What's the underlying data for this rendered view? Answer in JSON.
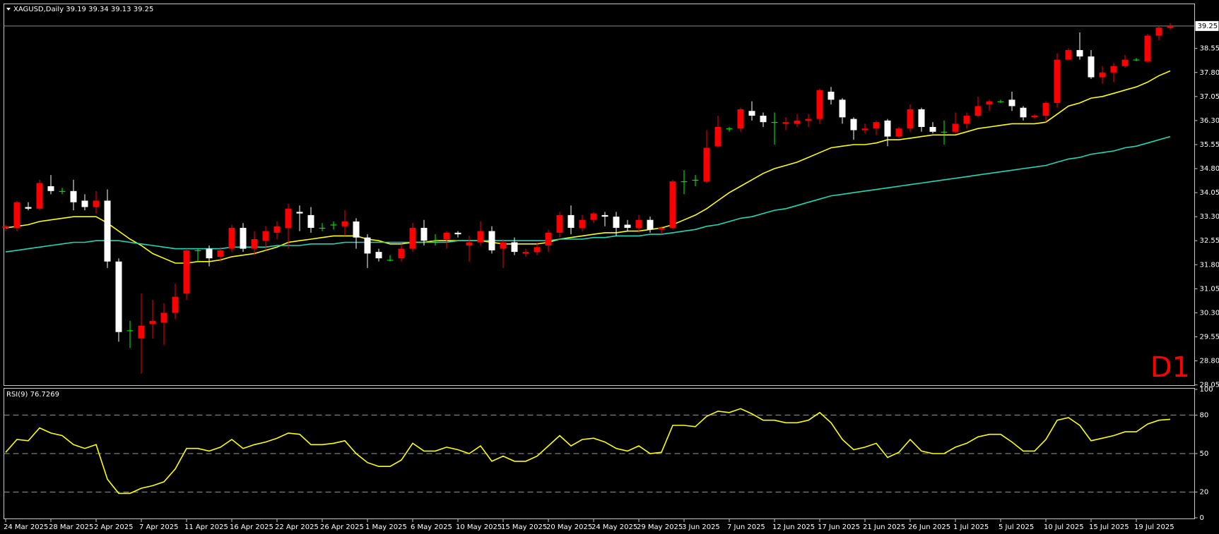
{
  "chart_data": [
    {
      "type": "candlestick",
      "title": "XAGUSD,Daily  39.19 39.34 39.13 39.25",
      "timeframe_label": "D1",
      "up_color": "#ff0000",
      "down_color": "#ffffff",
      "doji_color": "#00ff00",
      "ylim": [
        28.02,
        39.93
      ],
      "yticks": [
        28.05,
        {
          "value": 28.8,
          "label": "28.80"
        },
        29.55,
        {
          "value": 30.3,
          "label": "30.30"
        },
        31.05,
        {
          "value": 31.8,
          "label": "31.80"
        },
        32.55,
        {
          "value": 33.3,
          "label": "33.30"
        },
        34.05,
        {
          "value": 34.8,
          "label": "34.80"
        },
        35.55,
        {
          "value": 36.3,
          "label": "36.30"
        },
        37.05,
        {
          "value": 37.8,
          "label": "37.80"
        },
        38.55
      ],
      "current_price": 39.25,
      "open": [
        32.95,
        32.95,
        33.6,
        33.55,
        34.25,
        34.1,
        34.1,
        33.8,
        33.6,
        33.8,
        31.9,
        29.75,
        29.5,
        29.95,
        30.0,
        30.3,
        30.9,
        32.25,
        32.3,
        32.05,
        32.3,
        32.95,
        32.3,
        32.55,
        32.8,
        32.95,
        33.45,
        33.35,
        32.95,
        33.05,
        33.0,
        33.15,
        32.65,
        32.2,
        31.95,
        32.0,
        32.3,
        32.95,
        32.55,
        32.6,
        32.8,
        32.4,
        32.5,
        32.85,
        32.3,
        32.5,
        32.15,
        32.2,
        32.4,
        32.8,
        33.35,
        32.95,
        33.2,
        33.35,
        33.3,
        33.05,
        32.95,
        33.2,
        32.9,
        32.95,
        34.4,
        34.45,
        34.4,
        35.5,
        36.05,
        36.05,
        36.6,
        36.45,
        36.25,
        36.2,
        36.2,
        36.3,
        36.35,
        37.2,
        36.95,
        36.35,
        36.0,
        36.05,
        36.3,
        35.8,
        36.05,
        36.65,
        36.1,
        35.95,
        35.95,
        36.2,
        36.45,
        36.8,
        36.9,
        36.95,
        36.7,
        36.4,
        36.45,
        36.85,
        38.2,
        38.5,
        38.3,
        37.65,
        37.8,
        38.0,
        38.2,
        38.15,
        38.95,
        39.19
      ],
      "high": [
        33.05,
        33.8,
        33.75,
        34.45,
        34.6,
        34.2,
        34.45,
        34.0,
        34.1,
        34.15,
        32.0,
        30.05,
        30.9,
        30.7,
        30.6,
        31.2,
        32.3,
        32.3,
        32.4,
        32.35,
        33.05,
        33.1,
        32.85,
        33.0,
        33.15,
        33.7,
        33.65,
        33.6,
        33.1,
        33.15,
        33.5,
        33.25,
        32.75,
        32.3,
        32.1,
        32.45,
        33.1,
        33.2,
        32.75,
        32.85,
        32.85,
        32.7,
        33.15,
        33.0,
        32.6,
        32.65,
        32.3,
        32.5,
        32.9,
        33.45,
        33.65,
        33.35,
        33.45,
        33.45,
        33.45,
        33.2,
        33.35,
        33.3,
        33.0,
        34.45,
        34.75,
        34.6,
        36.0,
        36.45,
        36.1,
        36.7,
        36.9,
        36.55,
        36.55,
        36.4,
        36.5,
        36.5,
        37.3,
        37.35,
        37.0,
        36.4,
        36.2,
        36.3,
        36.35,
        36.1,
        36.8,
        36.7,
        36.25,
        36.3,
        36.55,
        36.55,
        37.05,
        36.95,
        36.95,
        37.2,
        36.75,
        36.5,
        36.9,
        38.4,
        38.55,
        39.05,
        38.5,
        38.0,
        38.1,
        38.35,
        38.25,
        39.0,
        39.25,
        39.34
      ],
      "low": [
        32.85,
        32.85,
        33.5,
        33.5,
        34.0,
        34.0,
        33.5,
        33.5,
        33.4,
        31.7,
        29.4,
        29.2,
        28.4,
        29.5,
        29.3,
        30.1,
        30.7,
        31.9,
        31.75,
        31.9,
        32.2,
        32.2,
        32.1,
        32.25,
        32.6,
        32.3,
        32.85,
        32.8,
        32.85,
        32.9,
        32.7,
        32.3,
        31.7,
        31.9,
        31.9,
        31.9,
        32.2,
        32.4,
        32.4,
        32.3,
        32.65,
        31.9,
        32.4,
        32.15,
        31.7,
        32.1,
        32.05,
        32.1,
        32.2,
        32.65,
        32.75,
        32.85,
        33.1,
        33.0,
        32.7,
        32.85,
        32.8,
        32.8,
        32.75,
        32.9,
        34.0,
        34.25,
        34.35,
        35.45,
        35.95,
        35.95,
        36.3,
        36.1,
        35.55,
        36.0,
        36.1,
        36.1,
        36.2,
        36.8,
        36.2,
        35.7,
        35.9,
        35.85,
        35.5,
        35.75,
        35.95,
        35.95,
        35.9,
        35.55,
        35.9,
        36.05,
        36.4,
        36.6,
        36.85,
        36.6,
        36.3,
        36.35,
        36.25,
        36.7,
        38.2,
        38.2,
        37.6,
        37.45,
        37.5,
        37.95,
        38.15,
        38.1,
        38.8,
        39.13
      ],
      "close": [
        33.0,
        33.75,
        33.55,
        34.35,
        34.1,
        34.1,
        33.75,
        33.6,
        33.8,
        31.9,
        29.7,
        29.75,
        29.9,
        30.05,
        30.3,
        30.8,
        32.25,
        32.25,
        32.0,
        32.25,
        32.95,
        32.3,
        32.6,
        32.85,
        33.0,
        33.55,
        33.4,
        32.95,
        32.95,
        33.05,
        33.15,
        32.65,
        32.15,
        32.0,
        31.95,
        32.3,
        32.95,
        32.55,
        32.55,
        32.8,
        32.75,
        32.5,
        32.85,
        32.25,
        32.5,
        32.2,
        32.2,
        32.35,
        32.8,
        33.35,
        32.95,
        33.2,
        33.4,
        33.3,
        32.95,
        32.95,
        33.2,
        32.9,
        32.95,
        34.4,
        34.4,
        34.45,
        35.45,
        36.1,
        36.05,
        36.65,
        36.45,
        36.25,
        36.25,
        36.25,
        36.3,
        36.35,
        37.25,
        36.95,
        36.4,
        36.0,
        36.05,
        36.25,
        35.8,
        36.05,
        36.65,
        36.1,
        35.95,
        35.95,
        36.2,
        36.45,
        36.75,
        36.9,
        36.9,
        36.75,
        36.4,
        36.45,
        36.85,
        38.2,
        38.5,
        38.3,
        37.65,
        37.8,
        38.0,
        38.2,
        38.2,
        38.95,
        39.2,
        39.25
      ],
      "series": [
        {
          "color": "#ffff00",
          "values": [
            32.95,
            33.0,
            33.05,
            33.15,
            33.2,
            33.25,
            33.3,
            33.3,
            33.3,
            33.1,
            32.85,
            32.6,
            32.4,
            32.15,
            32.0,
            31.85,
            31.85,
            31.9,
            31.9,
            31.95,
            32.05,
            32.1,
            32.15,
            32.25,
            32.35,
            32.5,
            32.55,
            32.6,
            32.65,
            32.7,
            32.7,
            32.7,
            32.6,
            32.55,
            32.45,
            32.45,
            32.5,
            32.5,
            32.55,
            32.55,
            32.55,
            32.55,
            32.55,
            32.5,
            32.45,
            32.45,
            32.45,
            32.45,
            32.5,
            32.6,
            32.65,
            32.7,
            32.75,
            32.8,
            32.8,
            32.85,
            32.85,
            32.9,
            32.95,
            33.05,
            33.2,
            33.35,
            33.55,
            33.8,
            34.05,
            34.25,
            34.45,
            34.65,
            34.8,
            34.9,
            35.0,
            35.15,
            35.3,
            35.45,
            35.5,
            35.55,
            35.55,
            35.6,
            35.7,
            35.7,
            35.75,
            35.8,
            35.85,
            35.85,
            35.85,
            35.95,
            36.05,
            36.1,
            36.15,
            36.2,
            36.2,
            36.2,
            36.25,
            36.5,
            36.75,
            36.85,
            37.0,
            37.05,
            37.15,
            37.25,
            37.35,
            37.5,
            37.7,
            37.85
          ]
        },
        {
          "color": "#20d8b8",
          "values": [
            32.2,
            32.25,
            32.3,
            32.35,
            32.4,
            32.45,
            32.5,
            32.5,
            32.55,
            32.55,
            32.55,
            32.5,
            32.45,
            32.4,
            32.35,
            32.3,
            32.3,
            32.3,
            32.3,
            32.3,
            32.35,
            32.35,
            32.35,
            32.35,
            32.4,
            32.4,
            32.4,
            32.45,
            32.45,
            32.45,
            32.5,
            32.5,
            32.5,
            32.5,
            32.5,
            32.5,
            32.5,
            32.5,
            32.5,
            32.5,
            32.55,
            32.55,
            32.55,
            32.55,
            32.55,
            32.55,
            32.55,
            32.55,
            32.55,
            32.6,
            32.6,
            32.6,
            32.65,
            32.65,
            32.7,
            32.7,
            32.7,
            32.75,
            32.75,
            32.8,
            32.85,
            32.9,
            33.0,
            33.05,
            33.15,
            33.25,
            33.3,
            33.4,
            33.5,
            33.55,
            33.65,
            33.75,
            33.85,
            33.95,
            34.0,
            34.05,
            34.1,
            34.15,
            34.2,
            34.25,
            34.3,
            34.35,
            34.4,
            34.45,
            34.5,
            34.55,
            34.6,
            34.65,
            34.7,
            34.75,
            34.8,
            34.85,
            34.9,
            35.0,
            35.1,
            35.15,
            35.25,
            35.3,
            35.35,
            35.45,
            35.5,
            35.6,
            35.7,
            35.8
          ]
        }
      ]
    },
    {
      "type": "line",
      "title": "RSI(9) 76.7269",
      "color": "#ffff00",
      "ylim": [
        0,
        100
      ],
      "yticks": [
        0,
        20,
        50,
        80,
        100
      ],
      "levels": [
        20,
        50,
        80
      ],
      "x": [
        "24 Mar 2025",
        null,
        null,
        null,
        "28 Mar 2025",
        null,
        null,
        null,
        "2 Apr 2025",
        null,
        null,
        null,
        "7 Apr 2025",
        null,
        null,
        null,
        "11 Apr 2025",
        null,
        null,
        null,
        "16 Apr 2025",
        null,
        null,
        null,
        "22 Apr 2025",
        null,
        null,
        null,
        "26 Apr 2025",
        null,
        null,
        null,
        "1 May 2025",
        null,
        null,
        null,
        "6 May 2025",
        null,
        null,
        null,
        "10 May 2025",
        null,
        null,
        null,
        "15 May 2025",
        null,
        null,
        null,
        "20 May 2025",
        null,
        null,
        null,
        "24 May 2025",
        null,
        null,
        null,
        "29 May 2025",
        null,
        null,
        null,
        "3 Jun 2025",
        null,
        null,
        null,
        "7 Jun 2025",
        null,
        null,
        null,
        "12 Jun 2025",
        null,
        null,
        null,
        "17 Jun 2025",
        null,
        null,
        null,
        "21 Jun 2025",
        null,
        null,
        null,
        "26 Jun 2025",
        null,
        null,
        null,
        "1 Jul 2025",
        null,
        null,
        null,
        "5 Jul 2025",
        null,
        null,
        null,
        "10 Jul 2025",
        null,
        null,
        null,
        "15 Jul 2025",
        null,
        null,
        null,
        "19 Jul 2025",
        null,
        null,
        null
      ],
      "values": [
        51,
        61,
        60,
        70,
        66,
        64,
        57,
        54,
        57,
        30,
        19,
        19,
        23,
        25,
        28,
        38,
        54,
        54,
        52,
        55,
        61,
        54,
        57,
        59,
        62,
        66,
        65,
        57,
        57,
        58,
        60,
        50,
        43,
        40,
        40,
        45,
        58,
        52,
        52,
        55,
        53,
        50,
        56,
        44,
        48,
        44,
        44,
        48,
        56,
        64,
        56,
        61,
        62,
        59,
        54,
        52,
        56,
        50,
        51,
        72,
        72,
        71,
        79,
        83,
        82,
        85,
        81,
        76,
        76,
        74,
        74,
        76,
        82,
        74,
        61,
        53,
        55,
        58,
        47,
        51,
        61,
        52,
        50,
        50,
        55,
        58,
        63,
        65,
        65,
        59,
        52,
        52,
        61,
        76,
        78,
        72,
        60,
        62,
        64,
        67,
        67,
        73,
        76,
        76.7269
      ]
    }
  ]
}
